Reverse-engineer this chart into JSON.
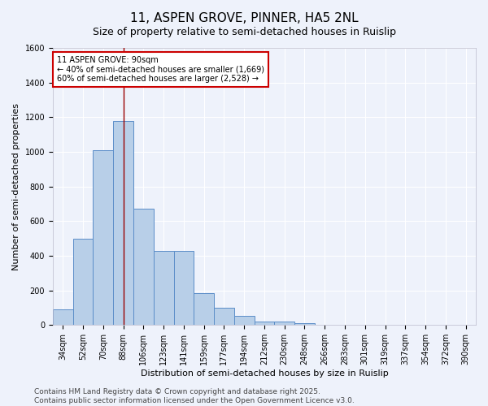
{
  "title": "11, ASPEN GROVE, PINNER, HA5 2NL",
  "subtitle": "Size of property relative to semi-detached houses in Ruislip",
  "xlabel": "Distribution of semi-detached houses by size in Ruislip",
  "ylabel": "Number of semi-detached properties",
  "categories": [
    "34sqm",
    "52sqm",
    "70sqm",
    "88sqm",
    "106sqm",
    "123sqm",
    "141sqm",
    "159sqm",
    "177sqm",
    "194sqm",
    "212sqm",
    "230sqm",
    "248sqm",
    "266sqm",
    "283sqm",
    "301sqm",
    "319sqm",
    "337sqm",
    "354sqm",
    "372sqm",
    "390sqm"
  ],
  "values": [
    90,
    500,
    1010,
    1180,
    670,
    430,
    430,
    185,
    100,
    55,
    20,
    20,
    10,
    0,
    0,
    0,
    0,
    0,
    0,
    0,
    0
  ],
  "bar_color": "#b8cfe8",
  "bar_edge_color": "#5b8dc8",
  "annotation_title": "11 ASPEN GROVE: 90sqm",
  "annotation_line1": "← 40% of semi-detached houses are smaller (1,669)",
  "annotation_line2": "60% of semi-detached houses are larger (2,528) →",
  "annotation_box_color": "#ffffff",
  "annotation_box_edge": "#cc0000",
  "vline_color": "#990000",
  "footer1": "Contains HM Land Registry data © Crown copyright and database right 2025.",
  "footer2": "Contains public sector information licensed under the Open Government Licence v3.0.",
  "ylim": [
    0,
    1600
  ],
  "background_color": "#eef2fb",
  "grid_color": "#ffffff",
  "title_fontsize": 11,
  "subtitle_fontsize": 9,
  "axis_label_fontsize": 8,
  "tick_fontsize": 7,
  "annotation_fontsize": 7,
  "footer_fontsize": 6.5
}
